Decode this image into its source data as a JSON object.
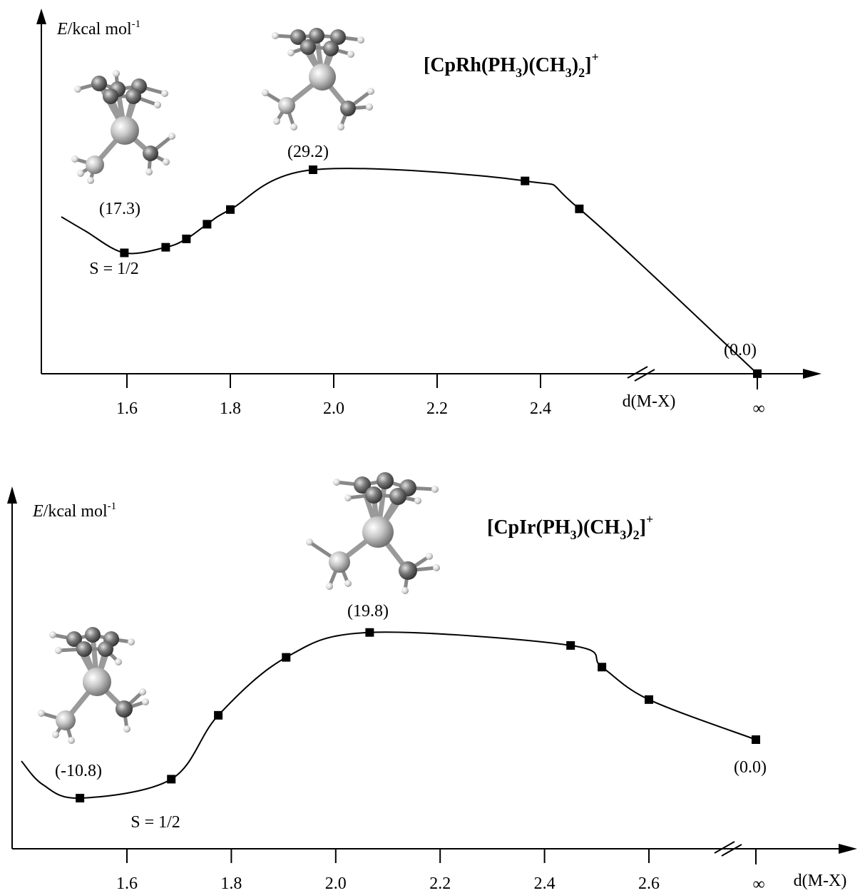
{
  "chart_data": [
    {
      "type": "line",
      "title": "[CpRh(PH3)(CH3)2]+",
      "title_parts": {
        "pre": "[CpRh(PH",
        "s1": "3",
        "mid": ")(CH",
        "s2": "3",
        "close": ")",
        "s3": "2",
        "end": "]",
        "sup": "+"
      },
      "ylabel": {
        "e": "E",
        "rest": "/kcal mol",
        "exp": "-1"
      },
      "xlabel": "d(M-X)",
      "infinity_label": "∞",
      "xticks": [
        1.6,
        1.8,
        2.0,
        2.2,
        2.4
      ],
      "xtick_labels": [
        "1.6",
        "1.8",
        "2.0",
        "2.2",
        "2.4"
      ],
      "x": [
        1.595,
        1.675,
        1.715,
        1.755,
        1.8,
        1.96,
        2.37,
        2.475,
        "∞"
      ],
      "y": [
        17.3,
        18.1,
        19.3,
        21.4,
        23.5,
        29.2,
        27.6,
        23.6,
        0.0
      ],
      "annotations": [
        {
          "text": "(17.3)",
          "x": 1.595,
          "y": 17.3
        },
        {
          "text": "(29.2)",
          "x": 1.96,
          "y": 29.2
        },
        {
          "text": "(0.0)",
          "x": "∞",
          "y": 0.0
        },
        {
          "text": "S = 1/2"
        }
      ],
      "grid": false,
      "x_axis_break": true
    },
    {
      "type": "line",
      "title": "[CpIr(PH3)(CH3)2]+",
      "title_parts": {
        "pre": "[CpIr(PH",
        "s1": "3",
        "mid": ")(CH",
        "s2": "3",
        "close": ")",
        "s3": "2",
        "end": "]",
        "sup": "+"
      },
      "ylabel": {
        "e": "E",
        "rest": "/kcal mol",
        "exp": "-1"
      },
      "xlabel": "d(M-X)",
      "infinity_label": "∞",
      "xticks": [
        1.6,
        1.8,
        2.0,
        2.2,
        2.4,
        2.6
      ],
      "xtick_labels": [
        "1.6",
        "1.8",
        "2.0",
        "2.2",
        "2.4",
        "2.6"
      ],
      "x": [
        1.51,
        1.685,
        1.775,
        1.905,
        2.065,
        2.45,
        2.51,
        2.6,
        "∞"
      ],
      "y": [
        -10.8,
        -7.3,
        4.5,
        15.2,
        19.8,
        17.4,
        13.4,
        7.4,
        0.0
      ],
      "annotations": [
        {
          "text": "(-10.8)",
          "x": 1.51,
          "y": -10.8
        },
        {
          "text": "(19.8)",
          "x": 2.065,
          "y": 19.8
        },
        {
          "text": "(0.0)",
          "x": "∞",
          "y": 0.0
        },
        {
          "text": "S = 1/2"
        }
      ],
      "grid": false,
      "x_axis_break": true
    }
  ]
}
